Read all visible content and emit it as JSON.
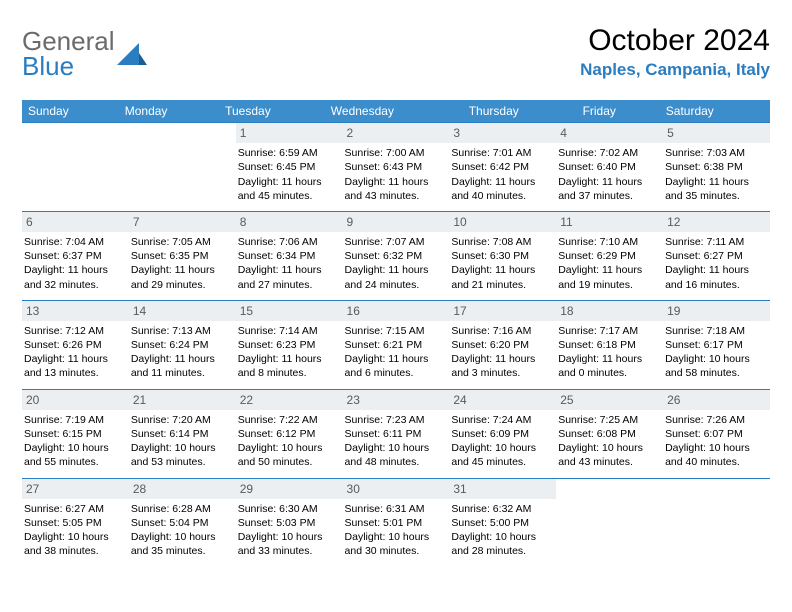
{
  "logo": {
    "general": "General",
    "blue": "Blue"
  },
  "title": "October 2024",
  "location": "Naples, Campania, Italy",
  "dow": [
    "Sunday",
    "Monday",
    "Tuesday",
    "Wednesday",
    "Thursday",
    "Friday",
    "Saturday"
  ],
  "colors": {
    "header_bg": "#3c8dcc",
    "accent": "#2a7dc0",
    "daynum_bg": "#eceff1",
    "daynum_fg": "#5a5a5a",
    "logo_gray": "#6b6b6b"
  },
  "weeks": [
    [
      {
        "n": "",
        "sr": "",
        "ss": "",
        "dl": ""
      },
      {
        "n": "",
        "sr": "",
        "ss": "",
        "dl": ""
      },
      {
        "n": "1",
        "sr": "Sunrise: 6:59 AM",
        "ss": "Sunset: 6:45 PM",
        "dl": "Daylight: 11 hours and 45 minutes."
      },
      {
        "n": "2",
        "sr": "Sunrise: 7:00 AM",
        "ss": "Sunset: 6:43 PM",
        "dl": "Daylight: 11 hours and 43 minutes."
      },
      {
        "n": "3",
        "sr": "Sunrise: 7:01 AM",
        "ss": "Sunset: 6:42 PM",
        "dl": "Daylight: 11 hours and 40 minutes."
      },
      {
        "n": "4",
        "sr": "Sunrise: 7:02 AM",
        "ss": "Sunset: 6:40 PM",
        "dl": "Daylight: 11 hours and 37 minutes."
      },
      {
        "n": "5",
        "sr": "Sunrise: 7:03 AM",
        "ss": "Sunset: 6:38 PM",
        "dl": "Daylight: 11 hours and 35 minutes."
      }
    ],
    [
      {
        "n": "6",
        "sr": "Sunrise: 7:04 AM",
        "ss": "Sunset: 6:37 PM",
        "dl": "Daylight: 11 hours and 32 minutes."
      },
      {
        "n": "7",
        "sr": "Sunrise: 7:05 AM",
        "ss": "Sunset: 6:35 PM",
        "dl": "Daylight: 11 hours and 29 minutes."
      },
      {
        "n": "8",
        "sr": "Sunrise: 7:06 AM",
        "ss": "Sunset: 6:34 PM",
        "dl": "Daylight: 11 hours and 27 minutes."
      },
      {
        "n": "9",
        "sr": "Sunrise: 7:07 AM",
        "ss": "Sunset: 6:32 PM",
        "dl": "Daylight: 11 hours and 24 minutes."
      },
      {
        "n": "10",
        "sr": "Sunrise: 7:08 AM",
        "ss": "Sunset: 6:30 PM",
        "dl": "Daylight: 11 hours and 21 minutes."
      },
      {
        "n": "11",
        "sr": "Sunrise: 7:10 AM",
        "ss": "Sunset: 6:29 PM",
        "dl": "Daylight: 11 hours and 19 minutes."
      },
      {
        "n": "12",
        "sr": "Sunrise: 7:11 AM",
        "ss": "Sunset: 6:27 PM",
        "dl": "Daylight: 11 hours and 16 minutes."
      }
    ],
    [
      {
        "n": "13",
        "sr": "Sunrise: 7:12 AM",
        "ss": "Sunset: 6:26 PM",
        "dl": "Daylight: 11 hours and 13 minutes."
      },
      {
        "n": "14",
        "sr": "Sunrise: 7:13 AM",
        "ss": "Sunset: 6:24 PM",
        "dl": "Daylight: 11 hours and 11 minutes."
      },
      {
        "n": "15",
        "sr": "Sunrise: 7:14 AM",
        "ss": "Sunset: 6:23 PM",
        "dl": "Daylight: 11 hours and 8 minutes."
      },
      {
        "n": "16",
        "sr": "Sunrise: 7:15 AM",
        "ss": "Sunset: 6:21 PM",
        "dl": "Daylight: 11 hours and 6 minutes."
      },
      {
        "n": "17",
        "sr": "Sunrise: 7:16 AM",
        "ss": "Sunset: 6:20 PM",
        "dl": "Daylight: 11 hours and 3 minutes."
      },
      {
        "n": "18",
        "sr": "Sunrise: 7:17 AM",
        "ss": "Sunset: 6:18 PM",
        "dl": "Daylight: 11 hours and 0 minutes."
      },
      {
        "n": "19",
        "sr": "Sunrise: 7:18 AM",
        "ss": "Sunset: 6:17 PM",
        "dl": "Daylight: 10 hours and 58 minutes."
      }
    ],
    [
      {
        "n": "20",
        "sr": "Sunrise: 7:19 AM",
        "ss": "Sunset: 6:15 PM",
        "dl": "Daylight: 10 hours and 55 minutes."
      },
      {
        "n": "21",
        "sr": "Sunrise: 7:20 AM",
        "ss": "Sunset: 6:14 PM",
        "dl": "Daylight: 10 hours and 53 minutes."
      },
      {
        "n": "22",
        "sr": "Sunrise: 7:22 AM",
        "ss": "Sunset: 6:12 PM",
        "dl": "Daylight: 10 hours and 50 minutes."
      },
      {
        "n": "23",
        "sr": "Sunrise: 7:23 AM",
        "ss": "Sunset: 6:11 PM",
        "dl": "Daylight: 10 hours and 48 minutes."
      },
      {
        "n": "24",
        "sr": "Sunrise: 7:24 AM",
        "ss": "Sunset: 6:09 PM",
        "dl": "Daylight: 10 hours and 45 minutes."
      },
      {
        "n": "25",
        "sr": "Sunrise: 7:25 AM",
        "ss": "Sunset: 6:08 PM",
        "dl": "Daylight: 10 hours and 43 minutes."
      },
      {
        "n": "26",
        "sr": "Sunrise: 7:26 AM",
        "ss": "Sunset: 6:07 PM",
        "dl": "Daylight: 10 hours and 40 minutes."
      }
    ],
    [
      {
        "n": "27",
        "sr": "Sunrise: 6:27 AM",
        "ss": "Sunset: 5:05 PM",
        "dl": "Daylight: 10 hours and 38 minutes."
      },
      {
        "n": "28",
        "sr": "Sunrise: 6:28 AM",
        "ss": "Sunset: 5:04 PM",
        "dl": "Daylight: 10 hours and 35 minutes."
      },
      {
        "n": "29",
        "sr": "Sunrise: 6:30 AM",
        "ss": "Sunset: 5:03 PM",
        "dl": "Daylight: 10 hours and 33 minutes."
      },
      {
        "n": "30",
        "sr": "Sunrise: 6:31 AM",
        "ss": "Sunset: 5:01 PM",
        "dl": "Daylight: 10 hours and 30 minutes."
      },
      {
        "n": "31",
        "sr": "Sunrise: 6:32 AM",
        "ss": "Sunset: 5:00 PM",
        "dl": "Daylight: 10 hours and 28 minutes."
      },
      {
        "n": "",
        "sr": "",
        "ss": "",
        "dl": ""
      },
      {
        "n": "",
        "sr": "",
        "ss": "",
        "dl": ""
      }
    ]
  ]
}
